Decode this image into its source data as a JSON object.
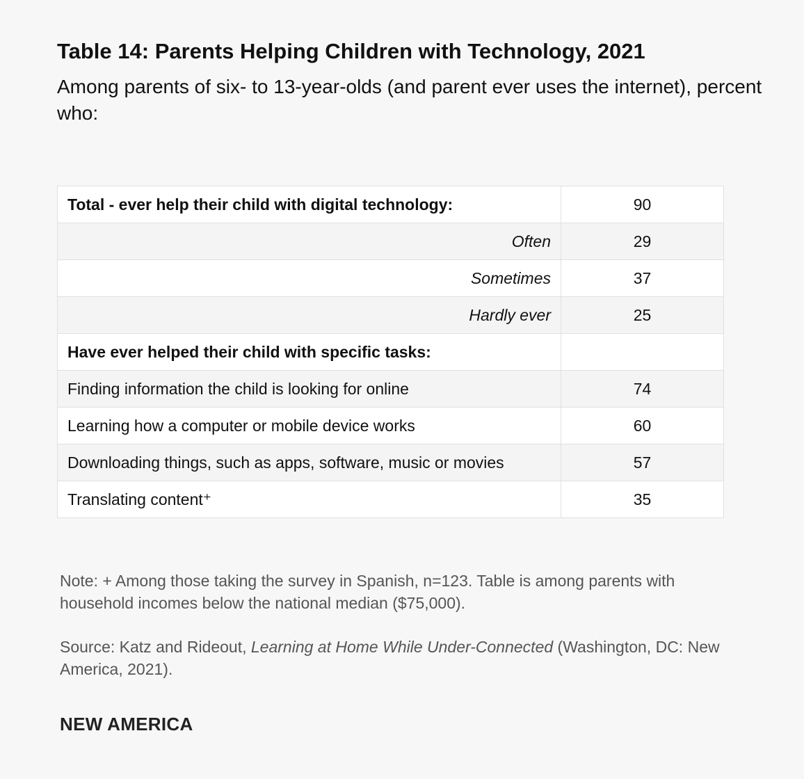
{
  "title": "Table 14: Parents Helping Children with Technology, 2021",
  "subtitle": "Among parents of six- to 13-year-olds (and parent ever uses the internet), percent who:",
  "chart_data": {
    "type": "table",
    "title": "Table 14: Parents Helping Children with Technology, 2021",
    "rows": [
      {
        "label": "Total - ever help their child with digital technology:",
        "value": "90",
        "style": "bold"
      },
      {
        "label": "Often",
        "value": "29",
        "style": "italic"
      },
      {
        "label": "Sometimes",
        "value": "37",
        "style": "italic"
      },
      {
        "label": "Hardly ever",
        "value": "25",
        "style": "italic"
      },
      {
        "label": "Have ever helped their child with specific tasks:",
        "value": "",
        "style": "bold"
      },
      {
        "label": "Finding information the child is looking for online",
        "value": "74",
        "style": "normal"
      },
      {
        "label": "Learning how a computer or mobile device works",
        "value": "60",
        "style": "normal"
      },
      {
        "label": "Downloading things, such as apps, software, music or movies",
        "value": "57",
        "style": "normal"
      },
      {
        "label": "Translating content⁺",
        "value": "35",
        "style": "normal"
      }
    ]
  },
  "note": "Note: + Among those taking the survey in Spanish, n=123. Table is among parents with household incomes below the national median ($75,000).",
  "source": {
    "prefix": "Source: Katz and Rideout, ",
    "title": "Learning at Home While Under-Connected",
    "suffix": " (Washington, DC: New America, 2021)."
  },
  "brand": "NEW AMERICA"
}
